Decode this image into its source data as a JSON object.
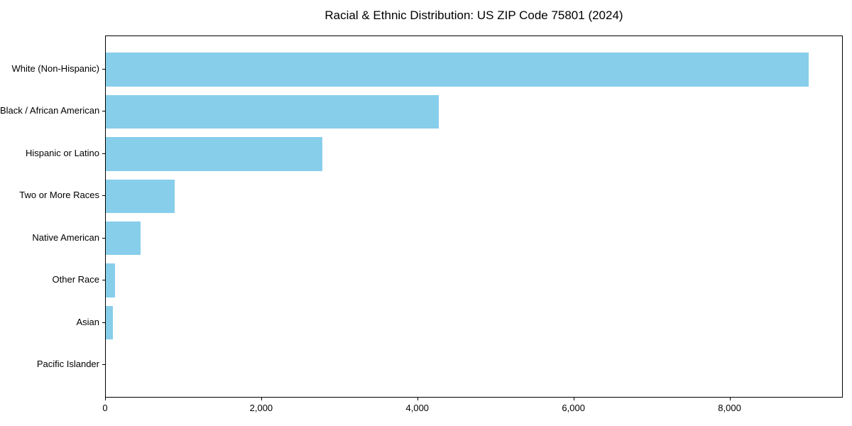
{
  "chart_data": {
    "type": "bar",
    "orientation": "horizontal",
    "title": "Racial & Ethnic Distribution: US ZIP Code 75801 (2024)",
    "categories": [
      "White (Non-Hispanic)",
      "Black / African American",
      "Hispanic or Latino",
      "Two or More Races",
      "Native American",
      "Other Race",
      "Asian",
      "Pacific Islander"
    ],
    "values": [
      9000,
      4270,
      2770,
      880,
      450,
      120,
      90,
      0
    ],
    "xlabel": "",
    "ylabel": "",
    "xlim": [
      0,
      9450
    ],
    "xticks": [
      0,
      2000,
      4000,
      6000,
      8000
    ],
    "xtick_labels": [
      "0",
      "2,000",
      "4,000",
      "6,000",
      "8,000"
    ],
    "bar_color": "#87CEEB",
    "axis_color": "#000000",
    "background_color": "#ffffff",
    "grid": false,
    "legend": null
  }
}
